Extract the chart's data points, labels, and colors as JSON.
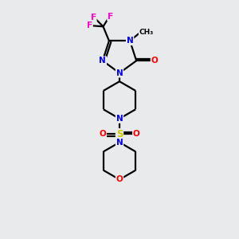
{
  "bg_color": "#e8eaec",
  "atom_colors": {
    "C": "#000000",
    "N": "#0000ff",
    "O": "#ff0000",
    "F": "#ff00cc",
    "S": "#cccc00",
    "H": "#000000"
  },
  "bond_color": "#000000",
  "bond_lw": 1.6,
  "font_size": 7.5
}
